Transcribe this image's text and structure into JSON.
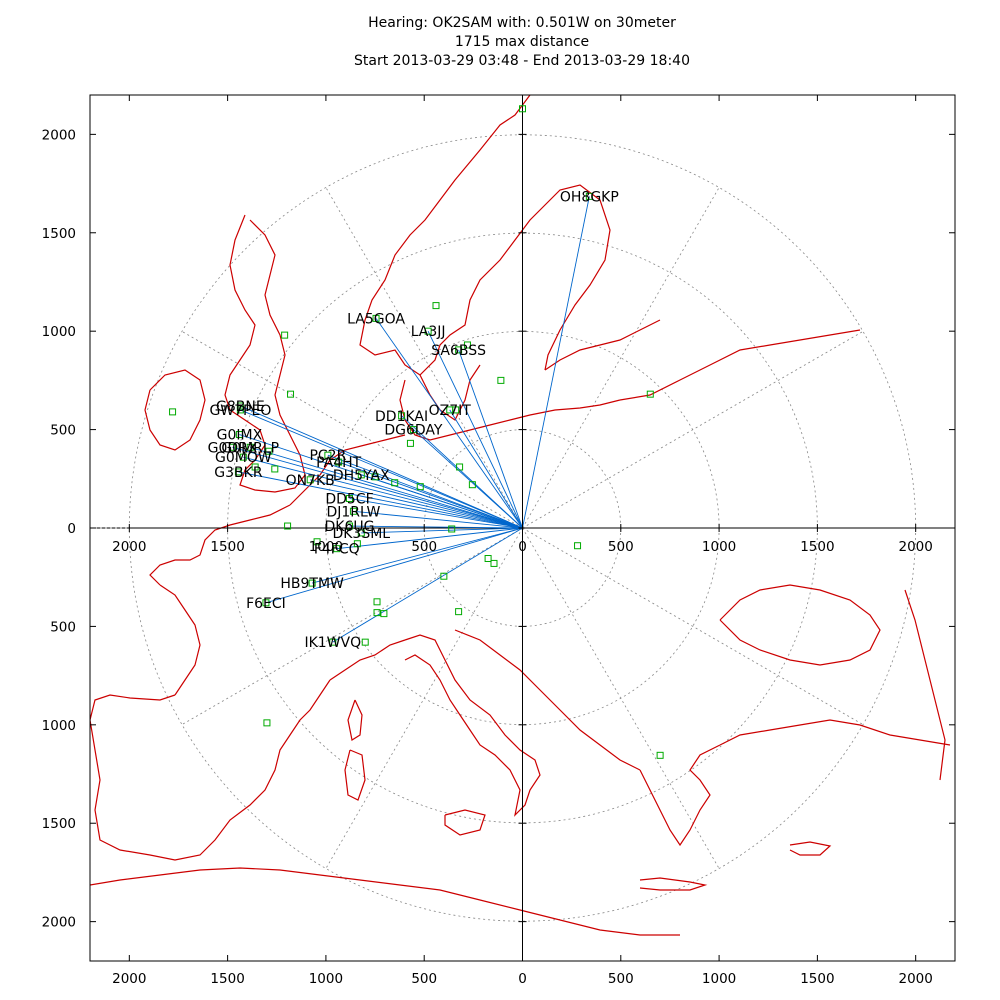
{
  "chart_data": {
    "type": "scatter",
    "subtype": "polar-distance-map",
    "title_lines": [
      "Hearing: OK2SAM with: 0.501W on 30meter",
      "1715 max distance",
      "Start 2013-03-29 03:48 - End 2013-03-29 18:40"
    ],
    "center_call": "OK2SAM",
    "power": "0.501W",
    "band": "30meter",
    "max_distance": 1715,
    "start": "2013-03-29 03:48",
    "end": "2013-03-29 18:40",
    "xlim": [
      -2200,
      2200
    ],
    "ylim": [
      -2200,
      2200
    ],
    "x_ticks": [
      {
        "v": -2000,
        "label": "2000"
      },
      {
        "v": -1500,
        "label": "1500"
      },
      {
        "v": -1000,
        "label": "1000"
      },
      {
        "v": -500,
        "label": "500"
      },
      {
        "v": 0,
        "label": "0"
      },
      {
        "v": 500,
        "label": "500"
      },
      {
        "v": 1000,
        "label": "1000"
      },
      {
        "v": 1500,
        "label": "1500"
      },
      {
        "v": 2000,
        "label": "2000"
      }
    ],
    "y_ticks": [
      {
        "v": 2000,
        "label": "2000"
      },
      {
        "v": 1500,
        "label": "1500"
      },
      {
        "v": 1000,
        "label": "1000"
      },
      {
        "v": 500,
        "label": "500"
      },
      {
        "v": 0,
        "label": "0"
      },
      {
        "v": -500,
        "label": "500"
      },
      {
        "v": -1000,
        "label": "1000"
      },
      {
        "v": -1500,
        "label": "1500"
      },
      {
        "v": -2000,
        "label": "2000"
      }
    ],
    "range_rings": [
      500,
      1000,
      1500,
      2000
    ],
    "spoke_angles_deg": [
      0,
      30,
      60,
      90,
      120,
      150,
      180,
      210,
      240,
      270,
      300,
      330
    ],
    "colors": {
      "map": "#cc0000",
      "path": "#0066cc",
      "marker": "#00aa00",
      "grid": "#888888",
      "axis": "#000000"
    },
    "stations": [
      {
        "call": "OH8GKP",
        "x": 340,
        "y": 1685
      },
      {
        "call": "LA5GOA",
        "x": -745,
        "y": 1065
      },
      {
        "call": "LA3JJ",
        "x": -480,
        "y": 1000
      },
      {
        "call": "SA6BSS",
        "x": -325,
        "y": 905
      },
      {
        "call": "OZ7IT",
        "x": -370,
        "y": 600
      },
      {
        "call": "DD1KAI",
        "x": -615,
        "y": 570
      },
      {
        "call": "DG6DAY",
        "x": -555,
        "y": 500
      },
      {
        "call": "G8BNE",
        "x": -1435,
        "y": 620
      },
      {
        "call": "GW7PEO",
        "x": -1435,
        "y": 600
      },
      {
        "call": "G0IMX",
        "x": -1440,
        "y": 475
      },
      {
        "call": "G0DRX",
        "x": -1475,
        "y": 410
      },
      {
        "call": "G0MRLP",
        "x": -1385,
        "y": 410
      },
      {
        "call": "G0MOW",
        "x": -1420,
        "y": 360
      },
      {
        "call": "G3BKR",
        "x": -1445,
        "y": 285
      },
      {
        "call": "PC2R",
        "x": -990,
        "y": 370
      },
      {
        "call": "PA4HT",
        "x": -935,
        "y": 335
      },
      {
        "call": "ON7KB",
        "x": -1080,
        "y": 245
      },
      {
        "call": "DH5YAX",
        "x": -820,
        "y": 270
      },
      {
        "call": "DD5CF",
        "x": -880,
        "y": 150
      },
      {
        "call": "DJ1RLW",
        "x": -860,
        "y": 85
      },
      {
        "call": "DK6UG",
        "x": -880,
        "y": 10
      },
      {
        "call": "DK3SML",
        "x": -820,
        "y": -25
      },
      {
        "call": "F4FCQ",
        "x": -945,
        "y": -105
      },
      {
        "call": "HB9TMW",
        "x": -1070,
        "y": -280
      },
      {
        "call": "F6ECI",
        "x": -1305,
        "y": -380
      },
      {
        "call": "IK1WVQ",
        "x": -965,
        "y": -580
      }
    ],
    "extra_markers": [
      {
        "x": 0,
        "y": 2130
      },
      {
        "x": 650,
        "y": 680
      },
      {
        "x": 280,
        "y": -90
      },
      {
        "x": -1780,
        "y": 590
      },
      {
        "x": -1210,
        "y": 980
      },
      {
        "x": -110,
        "y": 750
      },
      {
        "x": -440,
        "y": 1130
      },
      {
        "x": -280,
        "y": 930
      },
      {
        "x": -340,
        "y": 600
      },
      {
        "x": -1195,
        "y": 10
      },
      {
        "x": -1045,
        "y": -70
      },
      {
        "x": -1300,
        "y": -990
      },
      {
        "x": -175,
        "y": -155
      },
      {
        "x": -145,
        "y": -180
      },
      {
        "x": -400,
        "y": -245
      },
      {
        "x": -325,
        "y": -425
      },
      {
        "x": -740,
        "y": -375
      },
      {
        "x": -740,
        "y": -430
      },
      {
        "x": -705,
        "y": -435
      },
      {
        "x": 700,
        "y": -1155
      },
      {
        "x": -800,
        "y": -580
      },
      {
        "x": -320,
        "y": 310
      },
      {
        "x": -255,
        "y": 220
      },
      {
        "x": -570,
        "y": 430
      },
      {
        "x": -750,
        "y": 260
      },
      {
        "x": -650,
        "y": 230
      },
      {
        "x": -520,
        "y": 210
      },
      {
        "x": -1260,
        "y": 300
      },
      {
        "x": -1290,
        "y": 390
      },
      {
        "x": -1360,
        "y": 310
      },
      {
        "x": -1180,
        "y": 680
      },
      {
        "x": -840,
        "y": -80
      },
      {
        "x": -360,
        "y": -5
      }
    ]
  }
}
